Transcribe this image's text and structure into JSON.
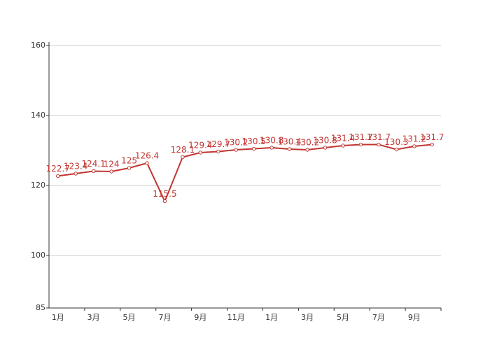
{
  "chart_data": {
    "type": "line",
    "categories": [
      "1月",
      null,
      "3月",
      null,
      "5月",
      null,
      "7月",
      null,
      "9月",
      null,
      "11月",
      null,
      "1月",
      null,
      "3月",
      null,
      "5月",
      null,
      "7月",
      null,
      "9月",
      null
    ],
    "values": [
      122.7,
      123.4,
      124.1,
      124,
      125,
      126.4,
      115.5,
      128.1,
      129.4,
      129.7,
      130.2,
      130.5,
      130.8,
      130.4,
      130.2,
      130.8,
      131.4,
      131.7,
      131.7,
      130.3,
      131.2,
      131.7
    ],
    "color": "#c23531",
    "ylim": [
      85,
      161
    ],
    "yticks": [
      85,
      100,
      120,
      140,
      160
    ],
    "grid": true
  }
}
